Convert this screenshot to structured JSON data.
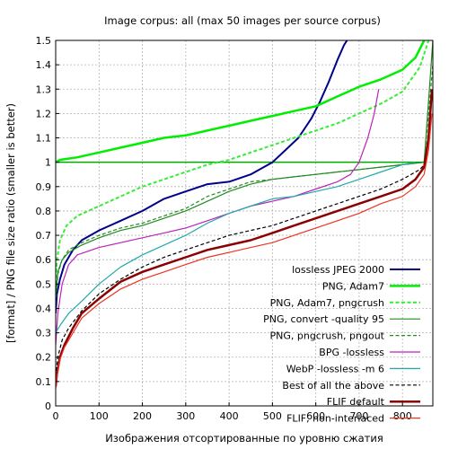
{
  "chart_data": {
    "type": "line",
    "title": "Image corpus: all (max 50 images per source corpus)",
    "xlabel": "Изображения отсортированные по уровню сжатия",
    "ylabel": "[format] / PNG file size ratio (smaller is better)",
    "xlim": [
      0,
      870
    ],
    "ylim": [
      0,
      1.5
    ],
    "x_ticks": [
      0,
      100,
      200,
      300,
      400,
      500,
      600,
      700,
      800
    ],
    "y_ticks": [
      0,
      0.1,
      0.2,
      0.3,
      0.4,
      0.5,
      0.6,
      0.7,
      0.8,
      0.9,
      1,
      1.1,
      1.2,
      1.3,
      1.4,
      1.5
    ],
    "grid": true,
    "legend_position": "lower-right",
    "reference_line": {
      "y": 1,
      "x_end": 850,
      "color": "#00aa00"
    },
    "series": [
      {
        "name": "lossless JPEG 2000",
        "color": "#00008b",
        "dash": "solid",
        "width": 2,
        "points": [
          [
            0,
            0.38
          ],
          [
            3,
            0.46
          ],
          [
            10,
            0.52
          ],
          [
            20,
            0.58
          ],
          [
            40,
            0.64
          ],
          [
            60,
            0.68
          ],
          [
            100,
            0.72
          ],
          [
            150,
            0.76
          ],
          [
            200,
            0.8
          ],
          [
            250,
            0.85
          ],
          [
            300,
            0.88
          ],
          [
            350,
            0.91
          ],
          [
            400,
            0.92
          ],
          [
            450,
            0.95
          ],
          [
            480,
            0.98
          ],
          [
            500,
            1.0
          ],
          [
            530,
            1.05
          ],
          [
            560,
            1.1
          ],
          [
            590,
            1.18
          ],
          [
            610,
            1.25
          ],
          [
            630,
            1.33
          ],
          [
            650,
            1.42
          ],
          [
            665,
            1.48
          ],
          [
            672,
            1.5
          ]
        ]
      },
      {
        "name": "PNG, Adam7",
        "color": "#00ee00",
        "dash": "solid",
        "width": 2.5,
        "points": [
          [
            0,
            1.0
          ],
          [
            10,
            1.01
          ],
          [
            50,
            1.02
          ],
          [
            100,
            1.04
          ],
          [
            150,
            1.06
          ],
          [
            200,
            1.08
          ],
          [
            250,
            1.1
          ],
          [
            300,
            1.11
          ],
          [
            350,
            1.13
          ],
          [
            400,
            1.15
          ],
          [
            450,
            1.17
          ],
          [
            500,
            1.19
          ],
          [
            550,
            1.21
          ],
          [
            600,
            1.23
          ],
          [
            650,
            1.27
          ],
          [
            700,
            1.31
          ],
          [
            750,
            1.34
          ],
          [
            800,
            1.38
          ],
          [
            830,
            1.43
          ],
          [
            850,
            1.5
          ]
        ]
      },
      {
        "name": "PNG, Adam7, pngcrush",
        "color": "#33ee33",
        "dash": "dashed",
        "width": 2,
        "points": [
          [
            0,
            0.5
          ],
          [
            3,
            0.6
          ],
          [
            10,
            0.68
          ],
          [
            25,
            0.74
          ],
          [
            50,
            0.78
          ],
          [
            100,
            0.82
          ],
          [
            150,
            0.86
          ],
          [
            200,
            0.9
          ],
          [
            250,
            0.93
          ],
          [
            300,
            0.96
          ],
          [
            350,
            0.99
          ],
          [
            400,
            1.01
          ],
          [
            450,
            1.04
          ],
          [
            500,
            1.07
          ],
          [
            550,
            1.1
          ],
          [
            600,
            1.13
          ],
          [
            650,
            1.16
          ],
          [
            700,
            1.2
          ],
          [
            750,
            1.24
          ],
          [
            800,
            1.29
          ],
          [
            840,
            1.39
          ],
          [
            860,
            1.5
          ]
        ]
      },
      {
        "name": "PNG, convert -quality 95",
        "color": "#228b22",
        "dash": "solid",
        "width": 1.2,
        "points": [
          [
            0,
            0.45
          ],
          [
            5,
            0.55
          ],
          [
            15,
            0.6
          ],
          [
            30,
            0.63
          ],
          [
            60,
            0.66
          ],
          [
            100,
            0.69
          ],
          [
            150,
            0.72
          ],
          [
            200,
            0.74
          ],
          [
            250,
            0.77
          ],
          [
            300,
            0.8
          ],
          [
            350,
            0.84
          ],
          [
            400,
            0.88
          ],
          [
            450,
            0.91
          ],
          [
            500,
            0.93
          ],
          [
            550,
            0.94
          ],
          [
            600,
            0.95
          ],
          [
            650,
            0.96
          ],
          [
            700,
            0.97
          ],
          [
            750,
            0.98
          ],
          [
            800,
            0.99
          ],
          [
            850,
            1.0
          ],
          [
            860,
            1.25
          ],
          [
            870,
            1.5
          ]
        ]
      },
      {
        "name": "PNG, pngcrush, pngout",
        "color": "#228b22",
        "dash": "dashed",
        "width": 1.2,
        "points": [
          [
            0,
            0.42
          ],
          [
            5,
            0.54
          ],
          [
            15,
            0.6
          ],
          [
            30,
            0.64
          ],
          [
            60,
            0.67
          ],
          [
            100,
            0.7
          ],
          [
            150,
            0.73
          ],
          [
            200,
            0.75
          ],
          [
            250,
            0.78
          ],
          [
            300,
            0.81
          ],
          [
            350,
            0.86
          ],
          [
            400,
            0.89
          ],
          [
            450,
            0.92
          ],
          [
            500,
            0.93
          ],
          [
            550,
            0.94
          ],
          [
            600,
            0.95
          ],
          [
            650,
            0.96
          ],
          [
            700,
            0.97
          ],
          [
            750,
            0.98
          ],
          [
            800,
            0.99
          ],
          [
            850,
            1.0
          ],
          [
            860,
            1.2
          ],
          [
            870,
            1.4
          ]
        ]
      },
      {
        "name": "BPG -lossless",
        "color": "#bb22bb",
        "dash": "solid",
        "width": 1.2,
        "points": [
          [
            0,
            0.25
          ],
          [
            5,
            0.38
          ],
          [
            15,
            0.5
          ],
          [
            30,
            0.58
          ],
          [
            50,
            0.62
          ],
          [
            100,
            0.65
          ],
          [
            150,
            0.67
          ],
          [
            200,
            0.69
          ],
          [
            250,
            0.71
          ],
          [
            300,
            0.73
          ],
          [
            350,
            0.76
          ],
          [
            400,
            0.79
          ],
          [
            450,
            0.82
          ],
          [
            500,
            0.84
          ],
          [
            550,
            0.86
          ],
          [
            600,
            0.89
          ],
          [
            650,
            0.92
          ],
          [
            680,
            0.95
          ],
          [
            700,
            1.0
          ],
          [
            720,
            1.1
          ],
          [
            735,
            1.2
          ],
          [
            745,
            1.3
          ]
        ]
      },
      {
        "name": "WebP -lossless -m 6",
        "color": "#22aaaa",
        "dash": "solid",
        "width": 1.2,
        "points": [
          [
            0,
            0.3
          ],
          [
            10,
            0.33
          ],
          [
            30,
            0.38
          ],
          [
            60,
            0.43
          ],
          [
            100,
            0.5
          ],
          [
            150,
            0.57
          ],
          [
            200,
            0.62
          ],
          [
            250,
            0.66
          ],
          [
            300,
            0.7
          ],
          [
            350,
            0.75
          ],
          [
            400,
            0.79
          ],
          [
            450,
            0.82
          ],
          [
            500,
            0.85
          ],
          [
            550,
            0.86
          ],
          [
            600,
            0.88
          ],
          [
            650,
            0.9
          ],
          [
            700,
            0.93
          ],
          [
            750,
            0.96
          ],
          [
            800,
            0.99
          ],
          [
            830,
            1.0
          ]
        ]
      },
      {
        "name": "Best of all the above",
        "color": "#000000",
        "dash": "dashed",
        "width": 1.2,
        "points": [
          [
            0,
            0.12
          ],
          [
            5,
            0.2
          ],
          [
            15,
            0.27
          ],
          [
            30,
            0.32
          ],
          [
            60,
            0.39
          ],
          [
            100,
            0.46
          ],
          [
            150,
            0.52
          ],
          [
            200,
            0.57
          ],
          [
            250,
            0.61
          ],
          [
            300,
            0.64
          ],
          [
            350,
            0.67
          ],
          [
            400,
            0.7
          ],
          [
            450,
            0.72
          ],
          [
            500,
            0.74
          ],
          [
            550,
            0.77
          ],
          [
            600,
            0.8
          ],
          [
            650,
            0.83
          ],
          [
            700,
            0.86
          ],
          [
            750,
            0.89
          ],
          [
            800,
            0.93
          ],
          [
            840,
            0.97
          ],
          [
            855,
            1.0
          ]
        ]
      },
      {
        "name": "FLIF default",
        "color": "#8b0000",
        "dash": "solid",
        "width": 2.5,
        "points": [
          [
            0,
            0.08
          ],
          [
            3,
            0.13
          ],
          [
            10,
            0.2
          ],
          [
            20,
            0.25
          ],
          [
            40,
            0.32
          ],
          [
            60,
            0.38
          ],
          [
            100,
            0.44
          ],
          [
            150,
            0.51
          ],
          [
            200,
            0.55
          ],
          [
            250,
            0.58
          ],
          [
            300,
            0.61
          ],
          [
            350,
            0.64
          ],
          [
            400,
            0.66
          ],
          [
            450,
            0.68
          ],
          [
            500,
            0.71
          ],
          [
            550,
            0.74
          ],
          [
            600,
            0.77
          ],
          [
            650,
            0.8
          ],
          [
            700,
            0.83
          ],
          [
            750,
            0.86
          ],
          [
            800,
            0.89
          ],
          [
            830,
            0.93
          ],
          [
            850,
            0.98
          ],
          [
            860,
            1.1
          ],
          [
            868,
            1.3
          ]
        ]
      },
      {
        "name": "FLIF, non-interlaced",
        "color": "#ee3322",
        "dash": "solid",
        "width": 1.2,
        "points": [
          [
            0,
            0.07
          ],
          [
            3,
            0.12
          ],
          [
            10,
            0.19
          ],
          [
            20,
            0.24
          ],
          [
            40,
            0.3
          ],
          [
            60,
            0.36
          ],
          [
            100,
            0.42
          ],
          [
            150,
            0.48
          ],
          [
            200,
            0.52
          ],
          [
            250,
            0.55
          ],
          [
            300,
            0.58
          ],
          [
            350,
            0.61
          ],
          [
            400,
            0.63
          ],
          [
            450,
            0.65
          ],
          [
            500,
            0.67
          ],
          [
            550,
            0.7
          ],
          [
            600,
            0.73
          ],
          [
            650,
            0.76
          ],
          [
            700,
            0.79
          ],
          [
            750,
            0.83
          ],
          [
            800,
            0.86
          ],
          [
            830,
            0.9
          ],
          [
            850,
            0.95
          ],
          [
            860,
            1.05
          ],
          [
            868,
            1.2
          ]
        ]
      }
    ]
  }
}
